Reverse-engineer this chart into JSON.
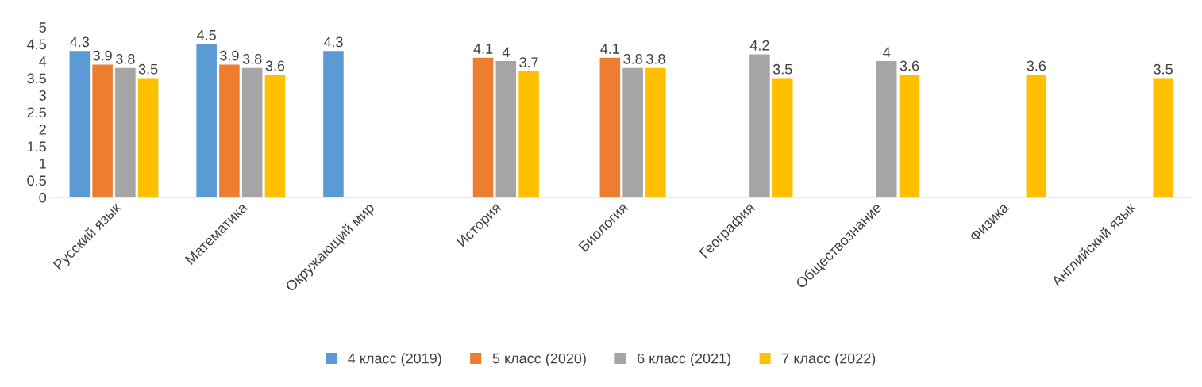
{
  "chart_data": {
    "type": "bar",
    "categories": [
      "Русский язык",
      "Математика",
      "Окружающий мир",
      "История",
      "Биология",
      "География",
      "Обществознание",
      "Физика",
      "Английский язык"
    ],
    "series": [
      {
        "name": "4 класс (2019)",
        "color": "#5b9bd5",
        "values": [
          4.3,
          4.5,
          4.3,
          null,
          null,
          null,
          null,
          null,
          null
        ]
      },
      {
        "name": "5 класс (2020)",
        "color": "#ed7d31",
        "values": [
          3.9,
          3.9,
          null,
          4.1,
          4.1,
          null,
          null,
          null,
          null
        ]
      },
      {
        "name": "6 класс (2021)",
        "color": "#a5a5a5",
        "values": [
          3.8,
          3.8,
          null,
          4,
          3.8,
          4.2,
          4,
          null,
          null
        ]
      },
      {
        "name": "7 класс (2022)",
        "color": "#ffc000",
        "values": [
          3.5,
          3.6,
          null,
          3.7,
          3.8,
          3.5,
          3.6,
          3.6,
          3.5
        ]
      }
    ],
    "ylim": [
      0,
      5
    ],
    "yticks": [
      0,
      0.5,
      1,
      1.5,
      2,
      2.5,
      3,
      3.5,
      4,
      4.5,
      5
    ],
    "data_labels": true,
    "legend": "bottom",
    "grid": false
  }
}
